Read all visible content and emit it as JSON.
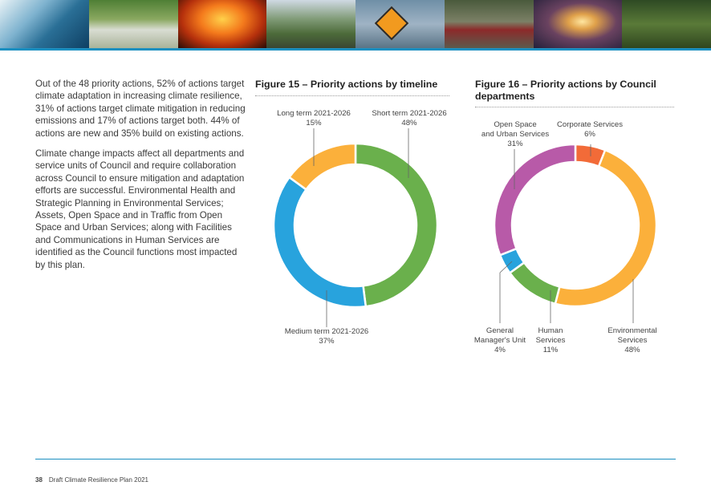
{
  "banner": {
    "tiles": [
      "wave-photo",
      "house-photo",
      "bushfire-photo",
      "green-building-photo",
      "flood-sign-photo",
      "flooded-car-photo",
      "lightning-photo",
      "forest-photo"
    ]
  },
  "body": {
    "paragraph1": "Out of the 48 priority actions, 52% of actions target climate adaptation in increasing climate resilience, 31% of actions target climate mitigation in reducing emissions and 17% of actions target both. 44% of actions are new and 35% build on existing actions.",
    "paragraph2": "Climate change impacts affect all departments and service units of Council and require collaboration across Council to ensure mitigation and adaptation efforts are successful. Environmental Health and Strategic Planning in Environmental Services; Assets, Open Space and in Traffic from Open Space and Urban Services; along with Facilities and Communications in Human Services are identified as the Council functions most impacted by this plan."
  },
  "chart_data": [
    {
      "type": "pie",
      "title": "Figure 15 – Priority actions by timeline",
      "series": [
        {
          "name": "Short term 2021-2026",
          "value": 48,
          "label": "48%",
          "color": "#6ab04c"
        },
        {
          "name": "Medium term 2021-2026",
          "value": 37,
          "label": "37%",
          "color": "#28a3dd"
        },
        {
          "name": "Long term 2021-2026",
          "value": 15,
          "label": "15%",
          "color": "#fbb03b"
        }
      ]
    },
    {
      "type": "pie",
      "title": "Figure 16 – Priority actions by Council departments",
      "series": [
        {
          "name": "Corporate Services",
          "value": 6,
          "label": "6%",
          "color": "#f26b38"
        },
        {
          "name": "Environmental Services",
          "value": 48,
          "label": "48%",
          "color": "#fbb03b"
        },
        {
          "name": "Human Services",
          "value": 11,
          "label": "11%",
          "color": "#6ab04c"
        },
        {
          "name": "General Manager's Unit",
          "value": 4,
          "label": "4%",
          "color": "#28a3dd"
        },
        {
          "name": "Open Space and Urban Services",
          "value": 31,
          "label": "31%",
          "color": "#b85aa8"
        }
      ]
    }
  ],
  "labels": {
    "fig15": {
      "long_line1": "Long term 2021-2026",
      "long_line2": "15%",
      "short_line1": "Short term 2021-2026",
      "short_line2": "48%",
      "medium_line1": "Medium term 2021-2026",
      "medium_line2": "37%"
    },
    "fig16": {
      "open_line1": "Open Space",
      "open_line2": "and Urban Services",
      "open_line3": "31%",
      "corp_line1": "Corporate Services",
      "corp_line2": "6%",
      "gm_line1": "General",
      "gm_line2": "Manager's Unit",
      "gm_line3": "4%",
      "human_line1": "Human",
      "human_line2": "Services",
      "human_line3": "11%",
      "env_line1": "Environmental",
      "env_line2": "Services",
      "env_line3": "48%"
    }
  },
  "footer": {
    "page_number": "38",
    "doc_title": "Draft Climate Resilience Plan 2021"
  },
  "colors": {
    "accent": "#1c8fc0"
  }
}
